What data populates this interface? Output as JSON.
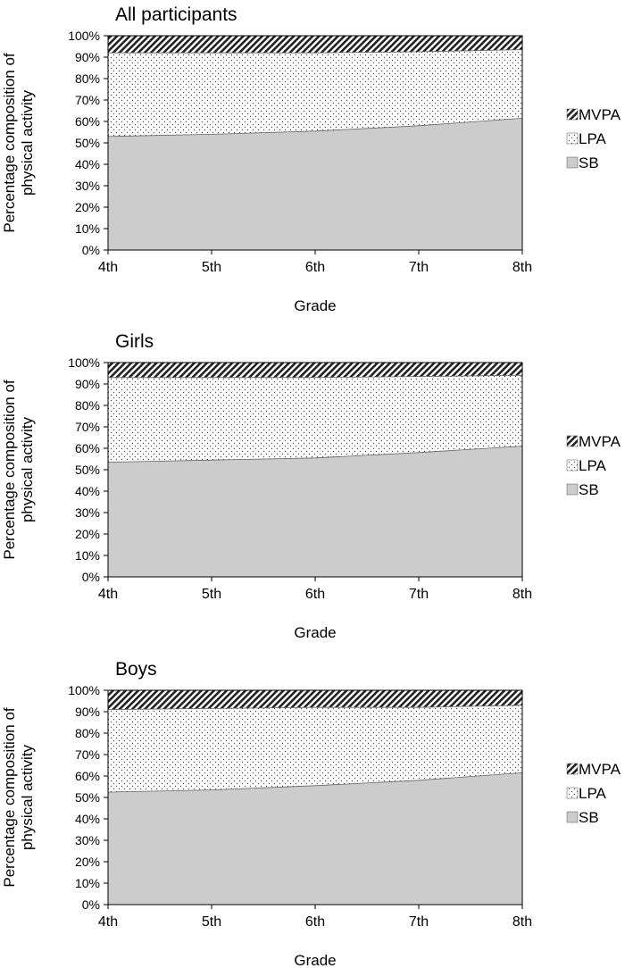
{
  "chart_data": [
    {
      "type": "area",
      "stacked": true,
      "title": "All participants",
      "xlabel": "Grade",
      "ylabel": "Percentage composition of physical activity",
      "categories": [
        "4th",
        "5th",
        "6th",
        "7th",
        "8th"
      ],
      "yticks": [
        "0%",
        "10%",
        "20%",
        "30%",
        "40%",
        "50%",
        "60%",
        "70%",
        "80%",
        "90%",
        "100%"
      ],
      "ylim": [
        0,
        100
      ],
      "legend_position": "right",
      "series": [
        {
          "name": "SB",
          "values": [
            53,
            54,
            55.5,
            58,
            61.5
          ]
        },
        {
          "name": "LPA",
          "values": [
            39,
            38,
            36.5,
            34.5,
            32
          ]
        },
        {
          "name": "MVPA",
          "values": [
            8,
            8,
            8,
            7.5,
            6.5
          ]
        }
      ]
    },
    {
      "type": "area",
      "stacked": true,
      "title": "Girls",
      "xlabel": "Grade",
      "ylabel": "Percentage composition of physical activity",
      "categories": [
        "4th",
        "5th",
        "6th",
        "7th",
        "8th"
      ],
      "yticks": [
        "0%",
        "10%",
        "20%",
        "30%",
        "40%",
        "50%",
        "60%",
        "70%",
        "80%",
        "90%",
        "100%"
      ],
      "ylim": [
        0,
        100
      ],
      "legend_position": "right",
      "series": [
        {
          "name": "SB",
          "values": [
            53.5,
            54.5,
            55.5,
            58,
            61
          ]
        },
        {
          "name": "LPA",
          "values": [
            39.5,
            38.5,
            37.5,
            35.5,
            33
          ]
        },
        {
          "name": "MVPA",
          "values": [
            7,
            7,
            7,
            6.5,
            6
          ]
        }
      ]
    },
    {
      "type": "area",
      "stacked": true,
      "title": "Boys",
      "xlabel": "Grade",
      "ylabel": "Percentage composition of physical activity",
      "categories": [
        "4th",
        "5th",
        "6th",
        "7th",
        "8th"
      ],
      "yticks": [
        "0%",
        "10%",
        "20%",
        "30%",
        "40%",
        "50%",
        "60%",
        "70%",
        "80%",
        "90%",
        "100%"
      ],
      "ylim": [
        0,
        100
      ],
      "legend_position": "right",
      "series": [
        {
          "name": "SB",
          "values": [
            52.5,
            53.5,
            55.5,
            58,
            61.5
          ]
        },
        {
          "name": "LPA",
          "values": [
            38.5,
            38,
            36.5,
            34,
            31.5
          ]
        },
        {
          "name": "MVPA",
          "values": [
            9,
            8.5,
            8,
            8,
            7
          ]
        }
      ]
    }
  ],
  "colors": {
    "SB": "#cccccc",
    "LPA_dots": "#555555",
    "MVPA_hatch": "#222222",
    "background": "#ffffff"
  }
}
